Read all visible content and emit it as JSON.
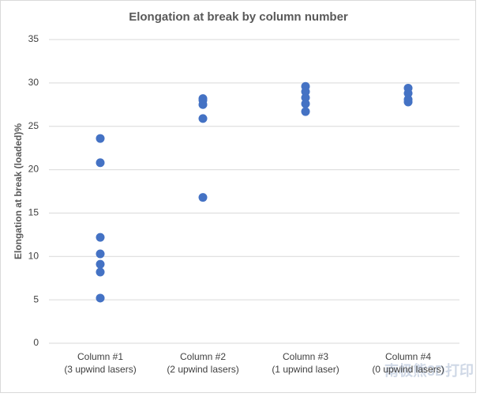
{
  "chart_data": {
    "type": "scatter",
    "title": "Elongation at break by column number",
    "y_label": "Elongation at break (loaded)%",
    "categories": [
      [
        "Column #1",
        "(3 upwind lasers)"
      ],
      [
        "Column #2",
        "(2 upwind lasers)"
      ],
      [
        "Column #3",
        "(1 upwind laser)"
      ],
      [
        "Column #4",
        "(0 upwind lasers)"
      ]
    ],
    "values": [
      [
        23.6,
        20.8,
        12.2,
        10.3,
        9.1,
        8.2,
        5.2
      ],
      [
        28.2,
        28.0,
        27.5,
        25.9,
        16.8
      ],
      [
        29.6,
        29.0,
        28.3,
        27.6,
        26.7
      ],
      [
        29.4,
        28.8,
        28.1,
        27.8
      ]
    ],
    "color": "#4472c4",
    "ylim": [
      0,
      35
    ],
    "yticks": [
      0,
      5,
      10,
      15,
      20,
      25,
      30,
      35
    ],
    "grid": true,
    "watermark": "南极熊3D打印"
  }
}
